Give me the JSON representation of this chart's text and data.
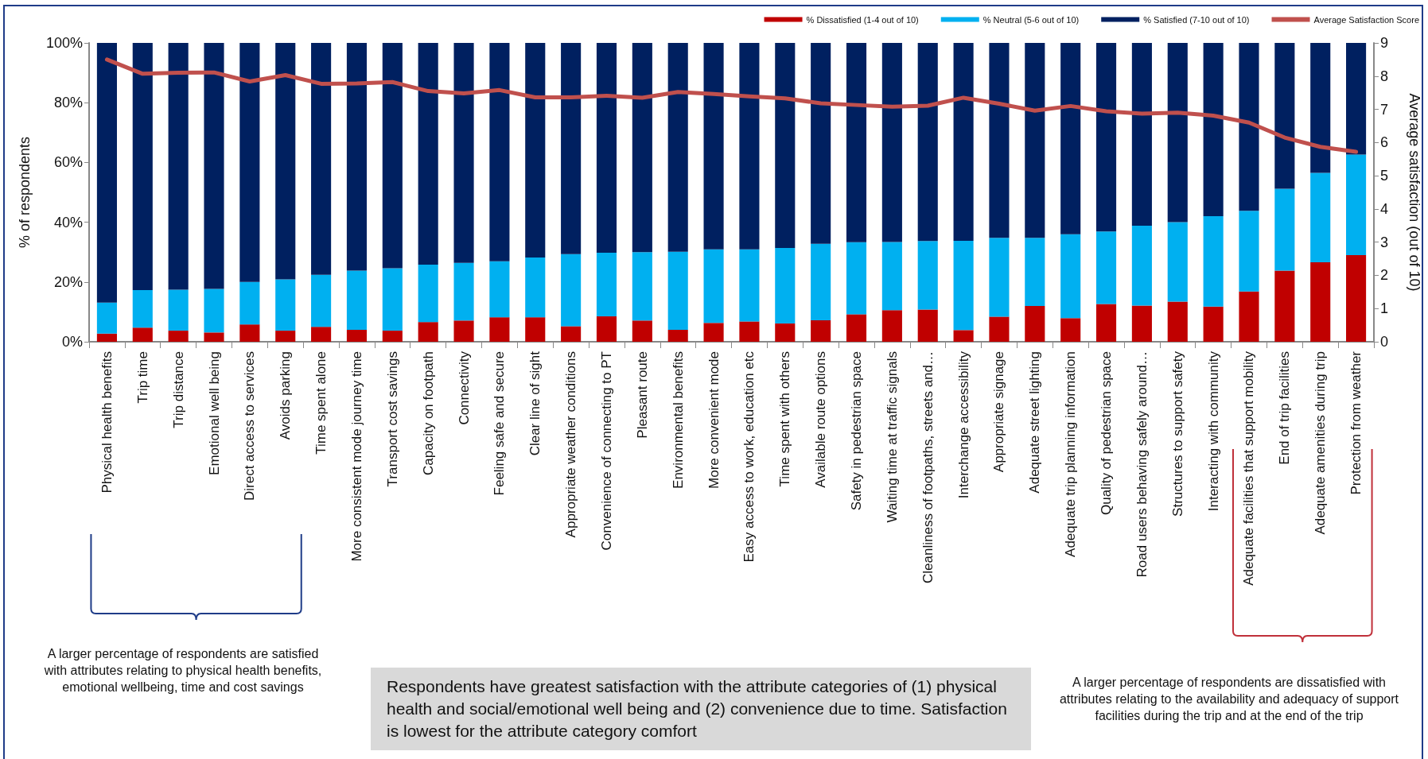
{
  "chart_data": {
    "type": "bar",
    "stacked": true,
    "categories": [
      "Physical health benefits",
      "Trip time",
      "Trip distance",
      "Emotional well being",
      "Direct access to services",
      "Avoids parking",
      "Time spent alone",
      "More consistent mode journey time",
      "Transport cost savings",
      "Capacity on footpath",
      "Connectivity",
      "Feeling safe and secure",
      "Clear line of sight",
      "Appropriate weather conditions",
      "Convenience of connecting to PT",
      "Pleasant route",
      "Environmental benefits",
      "More convenient mode",
      "Easy access to work, education etc",
      "Time spent with others",
      "Available route options",
      "Safety in pedestrian space",
      "Waiting time at traffic signals",
      "Cleanliness of footpaths, streets and…",
      "Interchange accessibility",
      "Appropriate signage",
      "Adequate street lighting",
      "Adequate trip planning information",
      "Quality of pedestrian space",
      "Road users behaving safely around…",
      "Structures to support safety",
      "Interacting with community",
      "Adequate facilities that support mobility",
      "End of trip facilities",
      "Adequate amenities during trip",
      "Protection from weather"
    ],
    "series": [
      {
        "name": "% Dissatisfied (1-4 out of 10)",
        "color": "#c00000",
        "values": [
          2.7,
          4.7,
          3.7,
          3.1,
          5.8,
          3.7,
          5.0,
          4.0,
          3.7,
          6.6,
          7.1,
          8.2,
          8.2,
          5.2,
          8.5,
          7.1,
          4.0,
          6.3,
          6.8,
          6.1,
          7.2,
          9.2,
          10.6,
          10.8,
          3.9,
          8.4,
          12.0,
          7.9,
          12.6,
          12.1,
          13.4,
          11.8,
          16.8,
          23.8,
          26.6,
          29.0
        ]
      },
      {
        "name": "% Neutral (5-6 out of 10)",
        "color": "#00b0f0",
        "values": [
          10.4,
          12.6,
          13.7,
          14.6,
          14.2,
          17.2,
          17.4,
          19.8,
          20.9,
          19.2,
          19.3,
          18.7,
          20.0,
          24.1,
          21.3,
          22.9,
          26.1,
          24.6,
          24.1,
          25.3,
          25.6,
          24.1,
          22.8,
          22.9,
          29.9,
          26.4,
          22.8,
          28.1,
          24.3,
          26.7,
          26.6,
          30.2,
          27.0,
          27.4,
          29.9,
          33.6
        ]
      },
      {
        "name": "% Satisfied (7-10 out of 10)",
        "color": "#002060",
        "values": [
          86.9,
          82.7,
          82.6,
          82.3,
          80.0,
          79.1,
          77.6,
          76.2,
          75.4,
          74.2,
          73.6,
          73.1,
          71.8,
          70.7,
          70.2,
          70.0,
          69.9,
          69.1,
          69.1,
          68.6,
          67.2,
          66.7,
          66.6,
          66.3,
          66.2,
          65.2,
          65.2,
          64.0,
          63.1,
          61.2,
          60.0,
          58.0,
          56.2,
          48.8,
          43.5,
          37.4
        ]
      },
      {
        "name": "Average Satisfaction Score",
        "type": "line",
        "axis": "y2",
        "color": "#c0504d",
        "marker": "none",
        "line_style": "solid",
        "values": [
          8.5,
          8.07,
          8.1,
          8.11,
          7.84,
          8.03,
          7.77,
          7.78,
          7.82,
          7.55,
          7.48,
          7.58,
          7.36,
          7.36,
          7.41,
          7.35,
          7.52,
          7.46,
          7.39,
          7.33,
          7.18,
          7.13,
          7.08,
          7.11,
          7.35,
          7.17,
          6.96,
          7.1,
          6.94,
          6.87,
          6.9,
          6.81,
          6.6,
          6.15,
          5.87,
          5.72
        ]
      }
    ],
    "ylabel": "% of respondents",
    "y2label": "Average satisfaction (out of 10)",
    "ylim": [
      0,
      100
    ],
    "yticks": [
      {
        "value": 0,
        "label": "0%"
      },
      {
        "value": 20,
        "label": "20%"
      },
      {
        "value": 40,
        "label": "40%"
      },
      {
        "value": 60,
        "label": "60%"
      },
      {
        "value": 80,
        "label": "80%"
      },
      {
        "value": 100,
        "label": "100%"
      }
    ],
    "y2lim": [
      0,
      9
    ],
    "y2ticks": [
      0,
      1,
      2,
      3,
      4,
      5,
      6,
      7,
      8,
      9
    ],
    "grid": false,
    "legend": "top right",
    "annotations": [
      "A larger percentage of respondents are satisfied with attributes relating to physical health benefits, emotional wellbeing, time and cost savings",
      "Respondents have greatest satisfaction with the attribute categories of (1) physical health and social/emotional well being and (2) convenience due to time. Satisfaction is lowest for the attribute category comfort",
      "A larger percentage of respondents are dissatisfied with attributes relating to the availability and adequacy of support facilities during the trip and at the end of the trip"
    ]
  }
}
